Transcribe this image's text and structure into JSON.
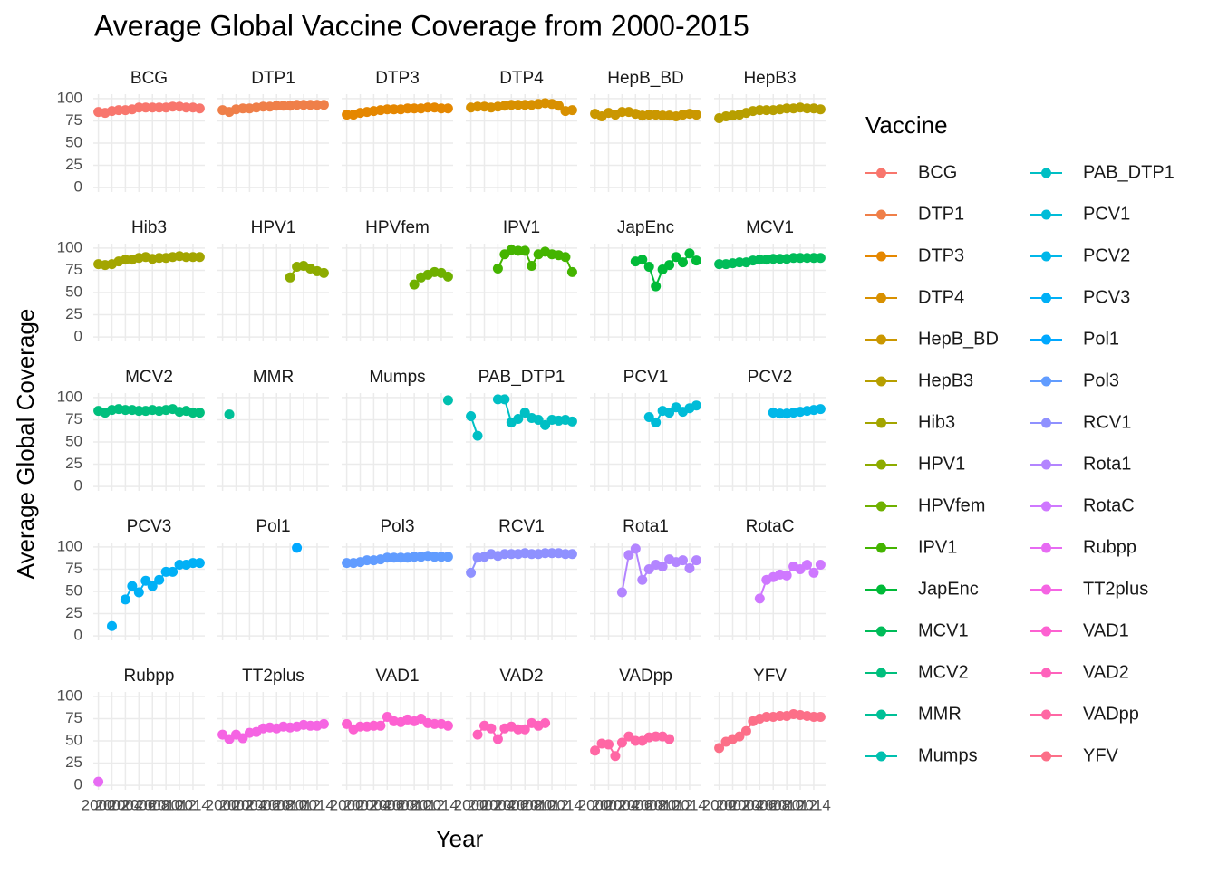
{
  "chart_data": {
    "type": "line",
    "title": "Average Global Vaccine Coverage from 2000-2015",
    "x_label": "Year",
    "y_label": "Average Global Coverage",
    "legend_title": "Vaccine",
    "x": [
      2000,
      2001,
      2002,
      2003,
      2004,
      2005,
      2006,
      2007,
      2008,
      2009,
      2010,
      2011,
      2012,
      2013,
      2014,
      2015
    ],
    "xlim": [
      1999.25,
      2015.75
    ],
    "xticks": [
      2000,
      2002,
      2004,
      2006,
      2008,
      2010,
      2012,
      2014
    ],
    "ylim": [
      -5,
      105
    ],
    "yticks": [
      0,
      25,
      50,
      75,
      100
    ],
    "grid": true,
    "series": [
      {
        "name": "BCG",
        "color": "#F8766D",
        "values": [
          85,
          84,
          86,
          87,
          87,
          88,
          90,
          90,
          90,
          90,
          90,
          91,
          91,
          90,
          90,
          89
        ]
      },
      {
        "name": "DTP1",
        "color": "#EF7F49",
        "values": [
          87,
          85,
          88,
          89,
          89,
          90,
          91,
          91,
          92,
          92,
          92,
          93,
          93,
          93,
          93,
          93
        ]
      },
      {
        "name": "DTP3",
        "color": "#E58700",
        "values": [
          82,
          82,
          84,
          85,
          86,
          87,
          88,
          88,
          88,
          89,
          89,
          89,
          90,
          90,
          89,
          89
        ]
      },
      {
        "name": "DTP4",
        "color": "#D89000",
        "values": [
          90,
          91,
          91,
          90,
          91,
          92,
          93,
          93,
          93,
          93,
          94,
          95,
          94,
          92,
          86,
          87
        ]
      },
      {
        "name": "HepB_BD",
        "color": "#CA9700",
        "values": [
          83,
          80,
          84,
          82,
          85,
          85,
          83,
          81,
          82,
          82,
          81,
          81,
          80,
          82,
          83,
          82
        ]
      },
      {
        "name": "HepB3",
        "color": "#B79F00",
        "values": [
          78,
          80,
          81,
          82,
          84,
          86,
          87,
          87,
          87,
          88,
          89,
          89,
          90,
          89,
          89,
          88
        ]
      },
      {
        "name": "Hib3",
        "color": "#A3A500",
        "values": [
          82,
          81,
          82,
          85,
          87,
          87,
          89,
          90,
          88,
          89,
          89,
          90,
          91,
          90,
          90,
          90
        ]
      },
      {
        "name": "HPV1",
        "color": "#8DAB00",
        "values": [
          null,
          null,
          null,
          null,
          null,
          null,
          null,
          null,
          null,
          null,
          67,
          79,
          80,
          77,
          74,
          72
        ]
      },
      {
        "name": "HPVfem",
        "color": "#6FB000",
        "values": [
          null,
          null,
          null,
          null,
          null,
          null,
          null,
          null,
          null,
          null,
          59,
          67,
          70,
          73,
          72,
          68
        ]
      },
      {
        "name": "IPV1",
        "color": "#44B400",
        "values": [
          null,
          null,
          null,
          null,
          77,
          93,
          98,
          97,
          97,
          80,
          93,
          96,
          93,
          92,
          90,
          73
        ]
      },
      {
        "name": "JapEnc",
        "color": "#00BA38",
        "values": [
          null,
          null,
          null,
          null,
          null,
          null,
          85,
          87,
          79,
          57,
          76,
          81,
          90,
          84,
          94,
          86
        ]
      },
      {
        "name": "MCV1",
        "color": "#00BC59",
        "values": [
          82,
          82,
          83,
          84,
          84,
          86,
          87,
          87,
          88,
          88,
          88,
          89,
          89,
          89,
          89,
          89
        ]
      },
      {
        "name": "MCV2",
        "color": "#00BF7D",
        "values": [
          85,
          83,
          86,
          87,
          86,
          86,
          85,
          85,
          86,
          85,
          86,
          87,
          84,
          85,
          83,
          83
        ]
      },
      {
        "name": "MMR",
        "color": "#00C097",
        "values": [
          null,
          81,
          null,
          null,
          null,
          null,
          null,
          null,
          null,
          null,
          null,
          null,
          null,
          null,
          null,
          null
        ]
      },
      {
        "name": "Mumps",
        "color": "#00C0AF",
        "values": [
          null,
          null,
          null,
          null,
          null,
          null,
          null,
          null,
          null,
          null,
          null,
          null,
          null,
          null,
          null,
          97
        ]
      },
      {
        "name": "PAB_DTP1",
        "color": "#00BFC4",
        "values": [
          79,
          57,
          null,
          null,
          98,
          98,
          72,
          76,
          83,
          77,
          75,
          69,
          75,
          74,
          75,
          73
        ]
      },
      {
        "name": "PCV1",
        "color": "#00BCD8",
        "values": [
          null,
          null,
          null,
          null,
          null,
          null,
          null,
          null,
          78,
          72,
          85,
          83,
          89,
          84,
          88,
          91
        ]
      },
      {
        "name": "PCV2",
        "color": "#00B7E9",
        "values": [
          null,
          null,
          null,
          null,
          null,
          null,
          null,
          null,
          83,
          82,
          82,
          83,
          84,
          85,
          86,
          87
        ]
      },
      {
        "name": "PCV3",
        "color": "#00B0F6",
        "values": [
          null,
          null,
          11,
          null,
          41,
          56,
          49,
          62,
          56,
          63,
          72,
          72,
          80,
          80,
          82,
          82
        ]
      },
      {
        "name": "Pol1",
        "color": "#00A8FF",
        "values": [
          null,
          null,
          null,
          null,
          null,
          null,
          null,
          null,
          null,
          null,
          null,
          99,
          null,
          null,
          null,
          null
        ]
      },
      {
        "name": "Pol3",
        "color": "#619CFF",
        "values": [
          82,
          82,
          83,
          85,
          85,
          86,
          88,
          88,
          88,
          88,
          89,
          89,
          90,
          89,
          89,
          89
        ]
      },
      {
        "name": "RCV1",
        "color": "#8F91FF",
        "values": [
          71,
          88,
          89,
          92,
          90,
          92,
          92,
          92,
          93,
          92,
          92,
          93,
          93,
          93,
          92,
          92
        ]
      },
      {
        "name": "Rota1",
        "color": "#B385FF",
        "values": [
          null,
          null,
          null,
          null,
          49,
          91,
          98,
          63,
          75,
          80,
          78,
          86,
          83,
          85,
          76,
          85
        ]
      },
      {
        "name": "RotaC",
        "color": "#CF78FF",
        "values": [
          null,
          null,
          null,
          null,
          null,
          null,
          42,
          63,
          66,
          69,
          68,
          78,
          75,
          80,
          71,
          80
        ]
      },
      {
        "name": "Rubpp",
        "color": "#E76BF3",
        "values": [
          4,
          null,
          null,
          null,
          null,
          null,
          null,
          null,
          null,
          null,
          null,
          null,
          null,
          null,
          null,
          null
        ]
      },
      {
        "name": "TT2plus",
        "color": "#F564E3",
        "values": [
          57,
          52,
          57,
          53,
          59,
          60,
          64,
          65,
          64,
          66,
          65,
          66,
          68,
          67,
          67,
          69
        ]
      },
      {
        "name": "VAD1",
        "color": "#FD61D1",
        "values": [
          69,
          63,
          66,
          66,
          67,
          67,
          77,
          72,
          71,
          74,
          72,
          75,
          70,
          69,
          69,
          67
        ]
      },
      {
        "name": "VAD2",
        "color": "#FF62BC",
        "values": [
          null,
          57,
          67,
          64,
          52,
          64,
          66,
          63,
          63,
          70,
          67,
          70,
          null,
          null,
          null,
          null
        ]
      },
      {
        "name": "VADpp",
        "color": "#FF67A4",
        "values": [
          39,
          47,
          46,
          33,
          48,
          55,
          50,
          50,
          54,
          55,
          55,
          52,
          null,
          null,
          null,
          null
        ]
      },
      {
        "name": "YFV",
        "color": "#FC6F88",
        "values": [
          42,
          49,
          52,
          55,
          61,
          72,
          75,
          77,
          77,
          78,
          78,
          80,
          79,
          78,
          77,
          77
        ]
      }
    ]
  }
}
